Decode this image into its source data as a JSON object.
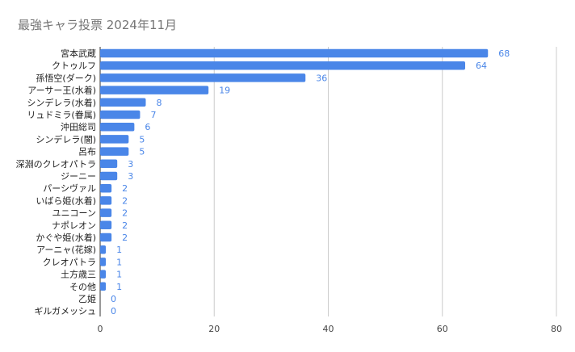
{
  "chart_data": {
    "type": "bar",
    "orientation": "horizontal",
    "title": "最強キャラ投票 2024年11月",
    "categories": [
      "宮本武蔵",
      "クトゥルフ",
      "孫悟空(ダーク)",
      "アーサー王(水着)",
      "シンデレラ(水着)",
      "リュドミラ(眷属)",
      "沖田総司",
      "シンデレラ(闇)",
      "呂布",
      "深淵のクレオパトラ",
      "ジーニー",
      "パーシヴァル",
      "いばら姫(水着)",
      "ユニコーン",
      "ナポレオン",
      "かぐや姫(水着)",
      "アーニャ(花嫁)",
      "クレオパトラ",
      "土方歳三",
      "その他",
      "乙姫",
      "ギルガメッシュ"
    ],
    "values": [
      68,
      64,
      36,
      19,
      8,
      7,
      6,
      5,
      5,
      3,
      3,
      2,
      2,
      2,
      2,
      2,
      1,
      1,
      1,
      1,
      0,
      0
    ],
    "xlim": [
      0,
      80
    ],
    "xticks": [
      0,
      20,
      40,
      60,
      80
    ],
    "xlabel": "",
    "ylabel": "",
    "grid": true,
    "bar_color": "#4a86e8",
    "value_label_color": "#4a86e8",
    "legend": "none"
  }
}
